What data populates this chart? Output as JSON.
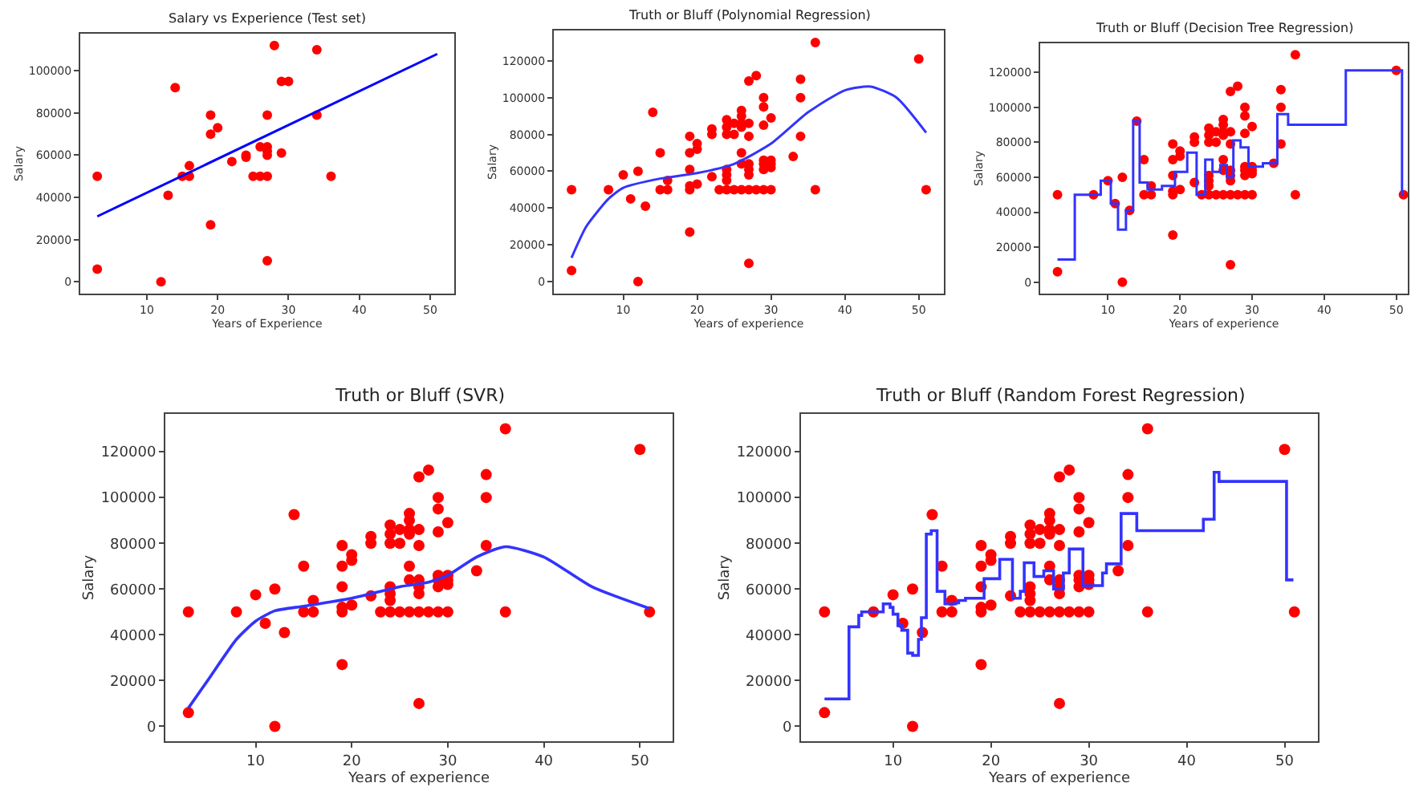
{
  "chart_data": [
    {
      "type": "scatter",
      "title": "Salary vs Experience (Test set)",
      "xlabel": "Years of Experience",
      "ylabel": "Salary",
      "xlim": [
        0.6,
        53.4
      ],
      "ylim": [
        -5600,
        117600
      ],
      "xticks": [
        10,
        20,
        30,
        40,
        50
      ],
      "yticks": [
        0,
        20000,
        40000,
        60000,
        80000,
        100000
      ],
      "series": [
        {
          "color": "#ff0000",
          "marker": "circle",
          "x": [
            3,
            3,
            12,
            13,
            14,
            15,
            16,
            16,
            19,
            19,
            19,
            20,
            22,
            24,
            24,
            25,
            26,
            26,
            27,
            27,
            27,
            27,
            27,
            27,
            28,
            29,
            29,
            30,
            34,
            34,
            36
          ],
          "values": [
            50000,
            6000,
            0,
            41000,
            92000,
            50000,
            55000,
            50000,
            79000,
            70000,
            27000,
            73000,
            57000,
            60000,
            59000,
            50000,
            64000,
            50000,
            79000,
            64000,
            62000,
            60000,
            50000,
            10000,
            112000,
            95000,
            61000,
            95000,
            110000,
            79000,
            50000
          ]
        },
        {
          "type": "line",
          "color": "#0000ff",
          "x": [
            3,
            51
          ],
          "values": [
            31000,
            108000
          ]
        }
      ]
    },
    {
      "type": "scatter",
      "title": "Truth or Bluff (Polynomial Regression)",
      "xlabel": "Years of experience",
      "ylabel": "Salary",
      "xlim": [
        0.6,
        53.4
      ],
      "ylim": [
        -6500,
        136500
      ],
      "xticks": [
        10,
        20,
        30,
        40,
        50
      ],
      "yticks": [
        0,
        20000,
        40000,
        60000,
        80000,
        100000,
        120000
      ],
      "series": [
        {
          "color": "#ff0000",
          "marker": "circle",
          "x": [
            3,
            3,
            8,
            10,
            11,
            12,
            12,
            13,
            14,
            15,
            15,
            16,
            16,
            19,
            19,
            19,
            19,
            19,
            19,
            20,
            20,
            20,
            22,
            22,
            22,
            23,
            24,
            24,
            24,
            24,
            24,
            24,
            24,
            25,
            25,
            25,
            26,
            26,
            26,
            26,
            26,
            26,
            26,
            27,
            27,
            27,
            27,
            27,
            27,
            27,
            27,
            28,
            28,
            29,
            29,
            29,
            29,
            29,
            29,
            29,
            30,
            30,
            30,
            30,
            30,
            33,
            34,
            34,
            34,
            36,
            36,
            50,
            51
          ],
          "values": [
            50000,
            6000,
            50000,
            58000,
            45000,
            60000,
            0,
            41000,
            92000,
            70000,
            50000,
            55000,
            50000,
            79000,
            70000,
            61000,
            52000,
            50000,
            27000,
            75000,
            72000,
            53000,
            83000,
            80000,
            57000,
            50000,
            88000,
            84000,
            80000,
            61000,
            58000,
            55000,
            50000,
            86000,
            80000,
            50000,
            93000,
            90000,
            86000,
            84000,
            70000,
            64000,
            50000,
            109000,
            86000,
            79000,
            64000,
            61000,
            58000,
            50000,
            10000,
            112000,
            50000,
            100000,
            95000,
            85000,
            66000,
            64000,
            61000,
            50000,
            89000,
            66000,
            64000,
            62000,
            50000,
            68000,
            110000,
            100000,
            79000,
            130000,
            50000,
            121000,
            50000
          ]
        },
        {
          "type": "line",
          "color": "#3333ff",
          "x": [
            3,
            5,
            8,
            10,
            15,
            20,
            25,
            30,
            35,
            40,
            43.5,
            47,
            51
          ],
          "values": [
            13000,
            30000,
            45000,
            51000,
            56000,
            59000,
            64000,
            75000,
            92000,
            104000,
            106000,
            100000,
            81000
          ]
        }
      ]
    },
    {
      "type": "scatter",
      "title": "Truth or Bluff (Decision Tree Regression)",
      "xlabel": "Years of experience",
      "ylabel": "Salary",
      "xlim": [
        0.6,
        51.6
      ],
      "ylim": [
        -6500,
        136500
      ],
      "xticks": [
        10,
        20,
        30,
        40,
        50
      ],
      "yticks": [
        0,
        20000,
        40000,
        60000,
        80000,
        100000,
        120000
      ],
      "series": [
        {
          "color": "#ff0000",
          "marker": "circle",
          "x": [
            3,
            3,
            8,
            10,
            11,
            12,
            12,
            13,
            14,
            15,
            15,
            16,
            16,
            19,
            19,
            19,
            19,
            19,
            19,
            20,
            20,
            20,
            22,
            22,
            22,
            23,
            24,
            24,
            24,
            24,
            24,
            24,
            24,
            25,
            25,
            25,
            26,
            26,
            26,
            26,
            26,
            26,
            26,
            27,
            27,
            27,
            27,
            27,
            27,
            27,
            27,
            28,
            28,
            29,
            29,
            29,
            29,
            29,
            29,
            29,
            30,
            30,
            30,
            30,
            30,
            33,
            34,
            34,
            34,
            36,
            36,
            50,
            51
          ],
          "values": [
            50000,
            6000,
            50000,
            58000,
            45000,
            60000,
            0,
            41000,
            92000,
            70000,
            50000,
            55000,
            50000,
            79000,
            70000,
            61000,
            52000,
            50000,
            27000,
            75000,
            72000,
            53000,
            83000,
            80000,
            57000,
            50000,
            88000,
            84000,
            80000,
            61000,
            58000,
            55000,
            50000,
            86000,
            80000,
            50000,
            93000,
            90000,
            86000,
            84000,
            70000,
            64000,
            50000,
            109000,
            86000,
            79000,
            64000,
            61000,
            58000,
            50000,
            10000,
            112000,
            50000,
            100000,
            95000,
            85000,
            66000,
            64000,
            61000,
            50000,
            89000,
            66000,
            64000,
            62000,
            50000,
            68000,
            110000,
            100000,
            79000,
            130000,
            50000,
            121000,
            50000
          ]
        },
        {
          "type": "step",
          "color": "#3333ff",
          "x": [
            3,
            5.4,
            9.0,
            10.4,
            11.4,
            12.5,
            13.5,
            14.4,
            15.5,
            17.5,
            19.3,
            21,
            22.3,
            23.5,
            24.5,
            25.6,
            26.5,
            27.4,
            28.4,
            29.5,
            31.5,
            33.5,
            35,
            43,
            50.8,
            51
          ],
          "values": [
            13000,
            50000,
            58000,
            45000,
            30000,
            41000,
            92000,
            57000,
            53000,
            55000,
            63000,
            74000,
            50000,
            70000,
            63000,
            67000,
            60000,
            81000,
            77000,
            66000,
            68000,
            96000,
            90000,
            121000,
            50000,
            50000
          ]
        }
      ]
    },
    {
      "type": "scatter",
      "title": "Truth or Bluff (SVR)",
      "xlabel": "Years of experience",
      "ylabel": "Salary",
      "xlim": [
        0.6,
        53.4
      ],
      "ylim": [
        -6500,
        136500
      ],
      "xticks": [
        10,
        20,
        30,
        40,
        50
      ],
      "yticks": [
        0,
        20000,
        40000,
        60000,
        80000,
        100000,
        120000
      ],
      "series": [
        {
          "color": "#ff0000",
          "marker": "circle",
          "x": [
            3,
            3,
            8,
            10,
            11,
            12,
            12,
            13,
            14,
            15,
            15,
            16,
            16,
            19,
            19,
            19,
            19,
            19,
            19,
            20,
            20,
            20,
            22,
            22,
            22,
            23,
            24,
            24,
            24,
            24,
            24,
            24,
            24,
            25,
            25,
            25,
            26,
            26,
            26,
            26,
            26,
            26,
            26,
            27,
            27,
            27,
            27,
            27,
            27,
            27,
            27,
            28,
            28,
            29,
            29,
            29,
            29,
            29,
            29,
            29,
            30,
            30,
            30,
            30,
            30,
            33,
            34,
            34,
            34,
            36,
            36,
            50,
            51
          ],
          "values": [
            50000,
            6000,
            50000,
            57500,
            45000,
            60000,
            0,
            41000,
            92500,
            70000,
            50000,
            55000,
            50000,
            79000,
            70000,
            61000,
            52000,
            50000,
            27000,
            75000,
            72500,
            53000,
            83000,
            80000,
            57000,
            50000,
            88000,
            84000,
            80000,
            61000,
            58000,
            55000,
            50000,
            86000,
            80000,
            50000,
            93000,
            90000,
            86000,
            84000,
            70000,
            64000,
            50000,
            109000,
            86000,
            79000,
            64000,
            61000,
            58000,
            50000,
            10000,
            112000,
            50000,
            100000,
            95000,
            85000,
            66000,
            64000,
            61000,
            50000,
            89000,
            66000,
            64000,
            62000,
            50000,
            68000,
            110000,
            100000,
            79000,
            130000,
            50000,
            121000,
            50000
          ]
        },
        {
          "type": "line",
          "color": "#3333ff",
          "x": [
            3,
            5,
            8,
            10,
            12,
            15,
            20,
            25,
            28,
            30,
            33,
            36,
            40,
            45,
            51
          ],
          "values": [
            8000,
            20000,
            38000,
            46000,
            50500,
            52500,
            56000,
            61000,
            63000,
            66000,
            74000,
            78500,
            74000,
            61000,
            51500
          ]
        }
      ]
    },
    {
      "type": "scatter",
      "title": "Truth or Bluff (Random Forest Regression)",
      "xlabel": "Years of experience",
      "ylabel": "Salary",
      "xlim": [
        0.6,
        53.4
      ],
      "ylim": [
        -6500,
        136500
      ],
      "xticks": [
        10,
        20,
        30,
        40,
        50
      ],
      "yticks": [
        0,
        20000,
        40000,
        60000,
        80000,
        100000,
        120000
      ],
      "series": [
        {
          "color": "#ff0000",
          "marker": "circle",
          "x": [
            3,
            3,
            8,
            10,
            11,
            12,
            12,
            13,
            14,
            15,
            15,
            16,
            16,
            19,
            19,
            19,
            19,
            19,
            19,
            20,
            20,
            20,
            22,
            22,
            22,
            23,
            24,
            24,
            24,
            24,
            24,
            24,
            24,
            25,
            25,
            25,
            26,
            26,
            26,
            26,
            26,
            26,
            26,
            27,
            27,
            27,
            27,
            27,
            27,
            27,
            27,
            28,
            28,
            29,
            29,
            29,
            29,
            29,
            29,
            29,
            30,
            30,
            30,
            30,
            30,
            33,
            34,
            34,
            34,
            36,
            36,
            50,
            51
          ],
          "values": [
            50000,
            6000,
            50000,
            57500,
            45000,
            60000,
            0,
            41000,
            92500,
            70000,
            50000,
            55000,
            50000,
            79000,
            70000,
            61000,
            52000,
            50000,
            27000,
            75000,
            72500,
            53000,
            83000,
            80000,
            57000,
            50000,
            88000,
            84000,
            80000,
            61000,
            58000,
            55000,
            50000,
            86000,
            80000,
            50000,
            93000,
            90000,
            86000,
            84000,
            70000,
            64000,
            50000,
            109000,
            86000,
            79000,
            64000,
            61000,
            58000,
            50000,
            10000,
            112000,
            50000,
            100000,
            95000,
            85000,
            66000,
            64000,
            61000,
            50000,
            89000,
            66000,
            64000,
            62000,
            50000,
            68000,
            110000,
            100000,
            79000,
            130000,
            50000,
            121000,
            50000
          ]
        },
        {
          "type": "step",
          "color": "#3333ff",
          "x": [
            3,
            5.5,
            6.5,
            6.8,
            9.0,
            9.7,
            10,
            10.5,
            10.9,
            11.5,
            12.0,
            12.6,
            12.9,
            13.4,
            13.9,
            14.5,
            15.3,
            16.4,
            16.7,
            17.4,
            19.3,
            20.9,
            22.2,
            23,
            23.4,
            24.4,
            25.4,
            26.4,
            27.4,
            28,
            29.4,
            31.4,
            31.8,
            33.3,
            34.9,
            41.7,
            42.8,
            43.3,
            50.2,
            50.9
          ],
          "values": [
            12000,
            43500,
            48500,
            50000,
            53500,
            52000,
            49000,
            44000,
            42000,
            32000,
            31000,
            38000,
            47500,
            84000,
            85500,
            59000,
            53500,
            54000,
            55000,
            56000,
            64500,
            73000,
            56000,
            59000,
            71500,
            65500,
            68000,
            60000,
            67000,
            77500,
            61500,
            67000,
            71000,
            93000,
            85500,
            90500,
            111000,
            107000,
            64000,
            64000
          ]
        }
      ]
    }
  ]
}
